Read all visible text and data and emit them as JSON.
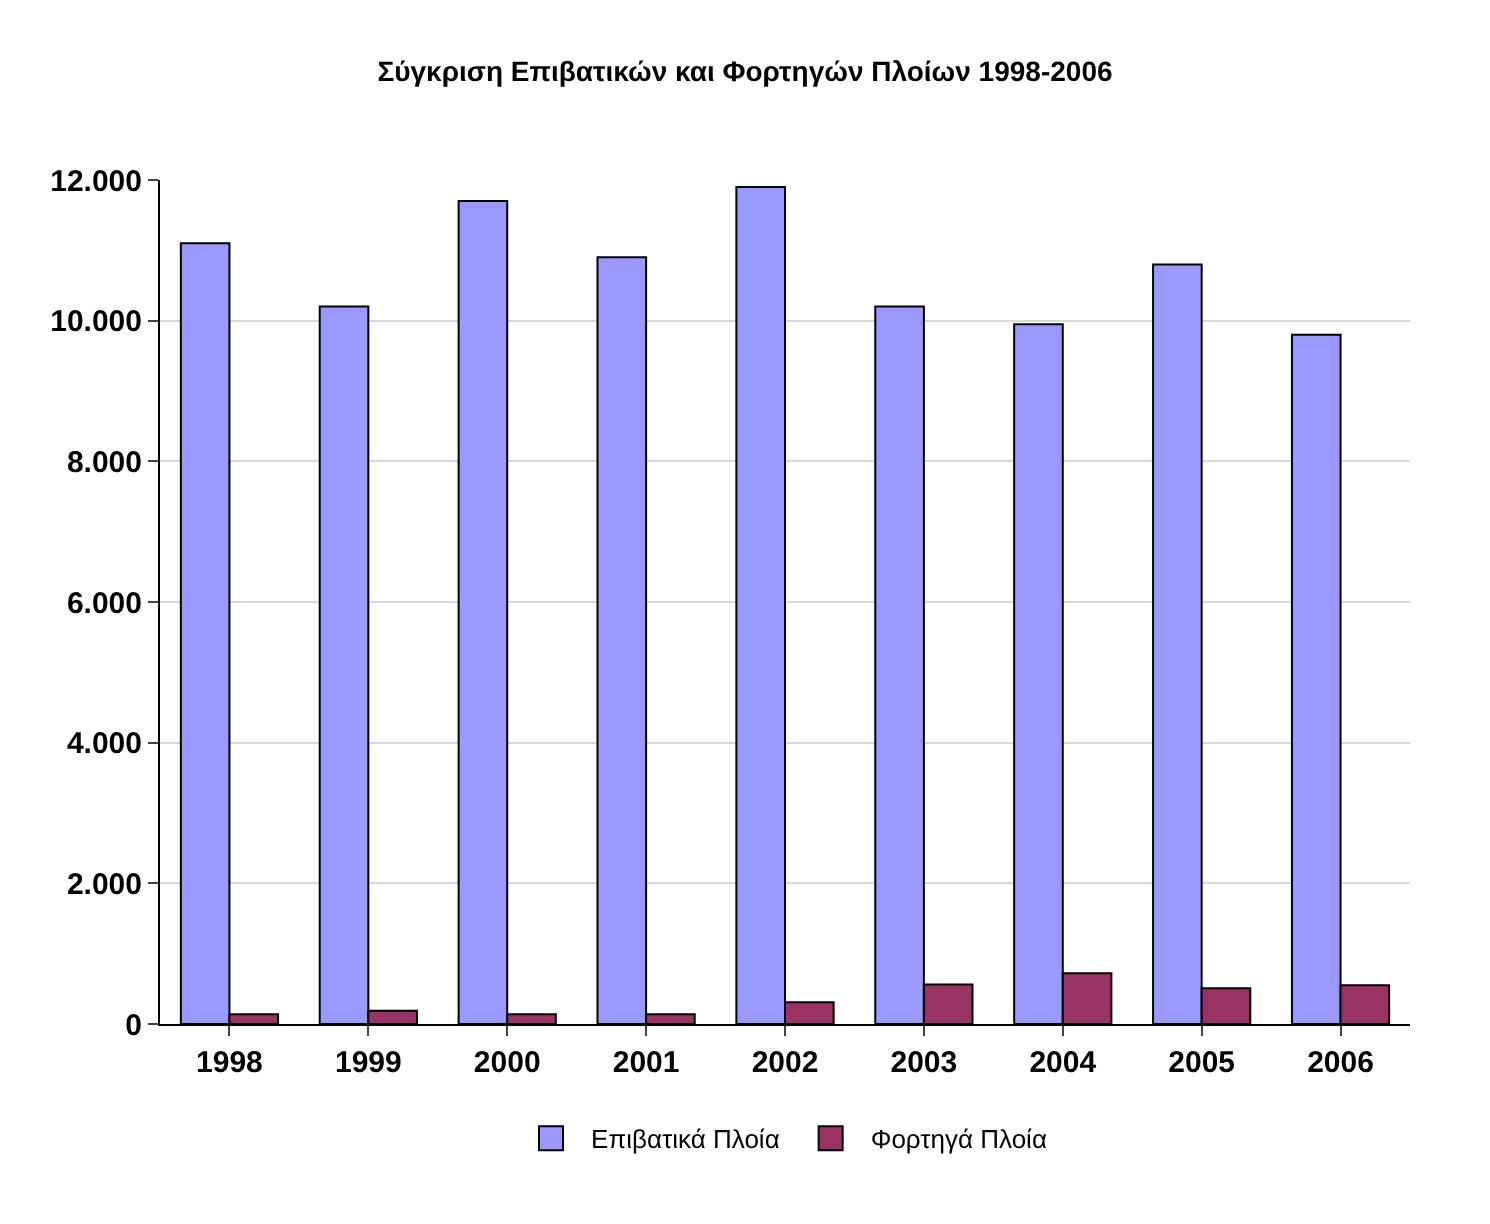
{
  "chart_data": {
    "type": "bar",
    "title": "Σύγκριση Επιβατικών και Φορτηγών Πλοίων 1998-2006",
    "categories": [
      "1998",
      "1999",
      "2000",
      "2001",
      "2002",
      "2003",
      "2004",
      "2005",
      "2006"
    ],
    "series": [
      {
        "name": "Επιβατικά Πλοία",
        "color": "#9999ff",
        "values": [
          11100,
          10200,
          11700,
          10900,
          11900,
          10200,
          9950,
          10800,
          9800
        ]
      },
      {
        "name": "Φορτηγά Πλοία",
        "color": "#993366",
        "values": [
          140,
          190,
          140,
          140,
          310,
          560,
          720,
          510,
          550
        ]
      }
    ],
    "ylim": [
      0,
      12000
    ],
    "yticks": [
      {
        "value": 0,
        "label": "0"
      },
      {
        "value": 2000,
        "label": "2.000"
      },
      {
        "value": 4000,
        "label": "4.000"
      },
      {
        "value": 6000,
        "label": "6.000"
      },
      {
        "value": 8000,
        "label": "8.000"
      },
      {
        "value": 10000,
        "label": "10.000"
      },
      {
        "value": 12000,
        "label": "12.000"
      }
    ],
    "grid": "y",
    "legend": "bottom"
  }
}
